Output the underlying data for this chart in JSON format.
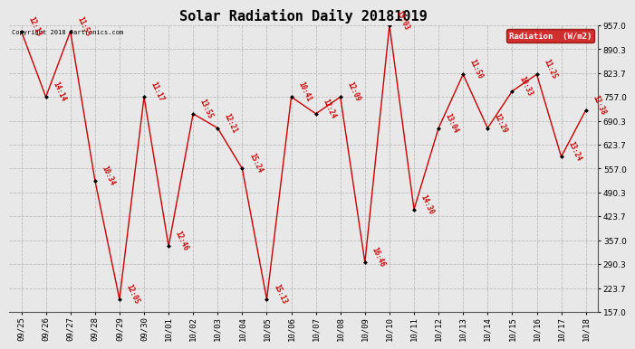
{
  "title": "Solar Radiation Daily 20181019",
  "copyright": "Copyright 2018 Cartronics.com",
  "legend_label": "Radiation  (W/m2)",
  "x_labels": [
    "09/25",
    "09/26",
    "09/27",
    "09/28",
    "09/29",
    "09/30",
    "10/01",
    "10/02",
    "10/03",
    "10/04",
    "10/05",
    "10/06",
    "10/07",
    "10/08",
    "10/09",
    "10/10",
    "10/11",
    "10/12",
    "10/13",
    "10/14",
    "10/15",
    "10/16",
    "10/17",
    "10/18"
  ],
  "y_values": [
    940,
    757,
    940,
    524,
    192,
    757,
    340,
    710,
    670,
    557,
    192,
    757,
    710,
    757,
    295,
    957,
    443,
    670,
    820,
    670,
    773,
    820,
    590,
    720
  ],
  "point_labels": [
    "12:13",
    "14:14",
    "11:55",
    "10:34",
    "12:05",
    "11:17",
    "12:46",
    "13:55",
    "12:21",
    "15:24",
    "15:13",
    "10:41",
    "12:24",
    "12:09",
    "16:46",
    "13:03",
    "14:30",
    "13:04",
    "11:50",
    "12:29",
    "10:33",
    "11:25",
    "13:24",
    "12:38"
  ],
  "ylim": [
    157.0,
    957.0
  ],
  "yticks": [
    157.0,
    223.7,
    290.3,
    357.0,
    423.7,
    490.3,
    557.0,
    623.7,
    690.3,
    757.0,
    823.7,
    890.3,
    957.0
  ],
  "line_color": "#cc0000",
  "marker_color": "#000000",
  "background_color": "#e8e8e8",
  "grid_color": "#bbbbbb",
  "label_color": "#cc0000",
  "title_fontsize": 11,
  "legend_bg": "#cc0000",
  "legend_fg": "#ffffff",
  "fig_width": 6.9,
  "fig_height": 3.75,
  "dpi": 100
}
